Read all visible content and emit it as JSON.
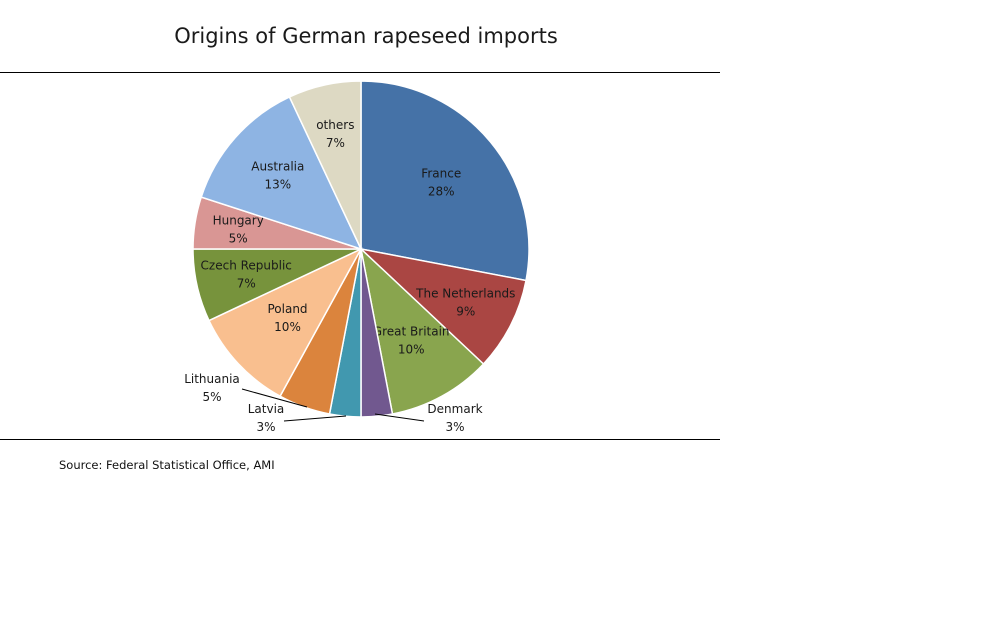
{
  "chart_data": {
    "type": "pie",
    "title": "Origins of German rapeseed imports",
    "source": "Source: Federal Statistical Office, AMI",
    "slices": [
      {
        "label": "France",
        "value": 28,
        "value_label": "28%",
        "color": "#4572A7"
      },
      {
        "label": "The Netherlands",
        "value": 9,
        "value_label": "9%",
        "color": "#AA4643"
      },
      {
        "label": "Great Britain",
        "value": 10,
        "value_label": "10%",
        "color": "#89A54E"
      },
      {
        "label": "Denmark",
        "value": 3,
        "value_label": "3%",
        "color": "#71588F"
      },
      {
        "label": "Latvia",
        "value": 3,
        "value_label": "3%",
        "color": "#4198AF"
      },
      {
        "label": "Lithuania",
        "value": 5,
        "value_label": "5%",
        "color": "#DB843D"
      },
      {
        "label": "Poland",
        "value": 10,
        "value_label": "10%",
        "color": "#F9BF8F"
      },
      {
        "label": "Czech Republic",
        "value": 7,
        "value_label": "7%",
        "color": "#77933C"
      },
      {
        "label": "Hungary",
        "value": 5,
        "value_label": "5%",
        "color": "#D99694"
      },
      {
        "label": "Australia",
        "value": 13,
        "value_label": "13%",
        "color": "#8EB4E3"
      },
      {
        "label": "others",
        "value": 7,
        "value_label": "7%",
        "color": "#DDD9C3"
      }
    ]
  }
}
